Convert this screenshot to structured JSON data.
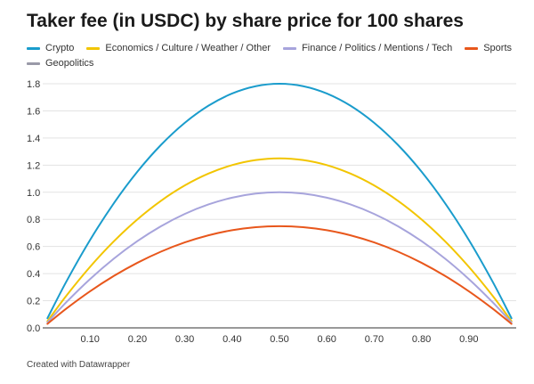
{
  "page_title": "Taker fee (in USDC) by share price for 100 shares",
  "credit": "Created with Datawrapper",
  "chart_data": {
    "type": "line",
    "title": "Taker fee (in USDC) by share price for 100 shares",
    "xlabel": "",
    "ylabel": "",
    "x": [
      0.01,
      0.05,
      0.1,
      0.15,
      0.2,
      0.25,
      0.3,
      0.35,
      0.4,
      0.45,
      0.5,
      0.55,
      0.6,
      0.65,
      0.7,
      0.75,
      0.8,
      0.85,
      0.9,
      0.95,
      0.99
    ],
    "xlim": [
      0,
      1
    ],
    "ylim": [
      0,
      1.8
    ],
    "x_ticks": [
      {
        "value": 0.1,
        "label": "0.10"
      },
      {
        "value": 0.2,
        "label": "0.20"
      },
      {
        "value": 0.3,
        "label": "0.30"
      },
      {
        "value": 0.4,
        "label": "0.40"
      },
      {
        "value": 0.5,
        "label": "0.50"
      },
      {
        "value": 0.6,
        "label": "0.60"
      },
      {
        "value": 0.7,
        "label": "0.70"
      },
      {
        "value": 0.8,
        "label": "0.80"
      },
      {
        "value": 0.9,
        "label": "0.90"
      }
    ],
    "y_ticks": [
      {
        "value": 0,
        "label": "0.0"
      },
      {
        "value": 0.2,
        "label": "0.2"
      },
      {
        "value": 0.4,
        "label": "0.4"
      },
      {
        "value": 0.6,
        "label": "0.6"
      },
      {
        "value": 0.8,
        "label": "0.8"
      },
      {
        "value": 1.0,
        "label": "1.0"
      },
      {
        "value": 1.2,
        "label": "1.2"
      },
      {
        "value": 1.4,
        "label": "1.4"
      },
      {
        "value": 1.6,
        "label": "1.6"
      },
      {
        "value": 1.8,
        "label": "1.8"
      }
    ],
    "grid": "horizontal",
    "legend_position": "top",
    "series": [
      {
        "name": "Crypto",
        "color": "#1a9ccc",
        "values": [
          0.0713,
          0.342,
          0.648,
          0.918,
          1.152,
          1.35,
          1.512,
          1.638,
          1.728,
          1.782,
          1.8,
          1.782,
          1.728,
          1.638,
          1.512,
          1.35,
          1.152,
          0.918,
          0.648,
          0.342,
          0.0713
        ]
      },
      {
        "name": "Economics / Culture / Weather / Other",
        "color": "#f2c500",
        "values": [
          0.0495,
          0.2375,
          0.45,
          0.6375,
          0.8,
          0.9375,
          1.05,
          1.1375,
          1.2,
          1.2375,
          1.25,
          1.2375,
          1.2,
          1.1375,
          1.05,
          0.9375,
          0.8,
          0.6375,
          0.45,
          0.2375,
          0.0495
        ]
      },
      {
        "name": "Finance / Politics / Mentions / Tech",
        "color": "#a7a4dc",
        "values": [
          0.0396,
          0.19,
          0.36,
          0.51,
          0.64,
          0.75,
          0.84,
          0.91,
          0.96,
          0.99,
          1.0,
          0.99,
          0.96,
          0.91,
          0.84,
          0.75,
          0.64,
          0.51,
          0.36,
          0.19,
          0.0396
        ]
      },
      {
        "name": "Sports",
        "color": "#e8571c",
        "values": [
          0.0297,
          0.1425,
          0.27,
          0.3825,
          0.48,
          0.5625,
          0.63,
          0.6825,
          0.72,
          0.7425,
          0.75,
          0.7425,
          0.72,
          0.6825,
          0.63,
          0.5625,
          0.48,
          0.3825,
          0.27,
          0.1425,
          0.0297
        ]
      },
      {
        "name": "Geopolitics",
        "color": "#9a9aa8",
        "values": [
          0,
          0,
          0,
          0,
          0,
          0,
          0,
          0,
          0,
          0,
          0,
          0,
          0,
          0,
          0,
          0,
          0,
          0,
          0,
          0,
          0
        ]
      }
    ]
  }
}
